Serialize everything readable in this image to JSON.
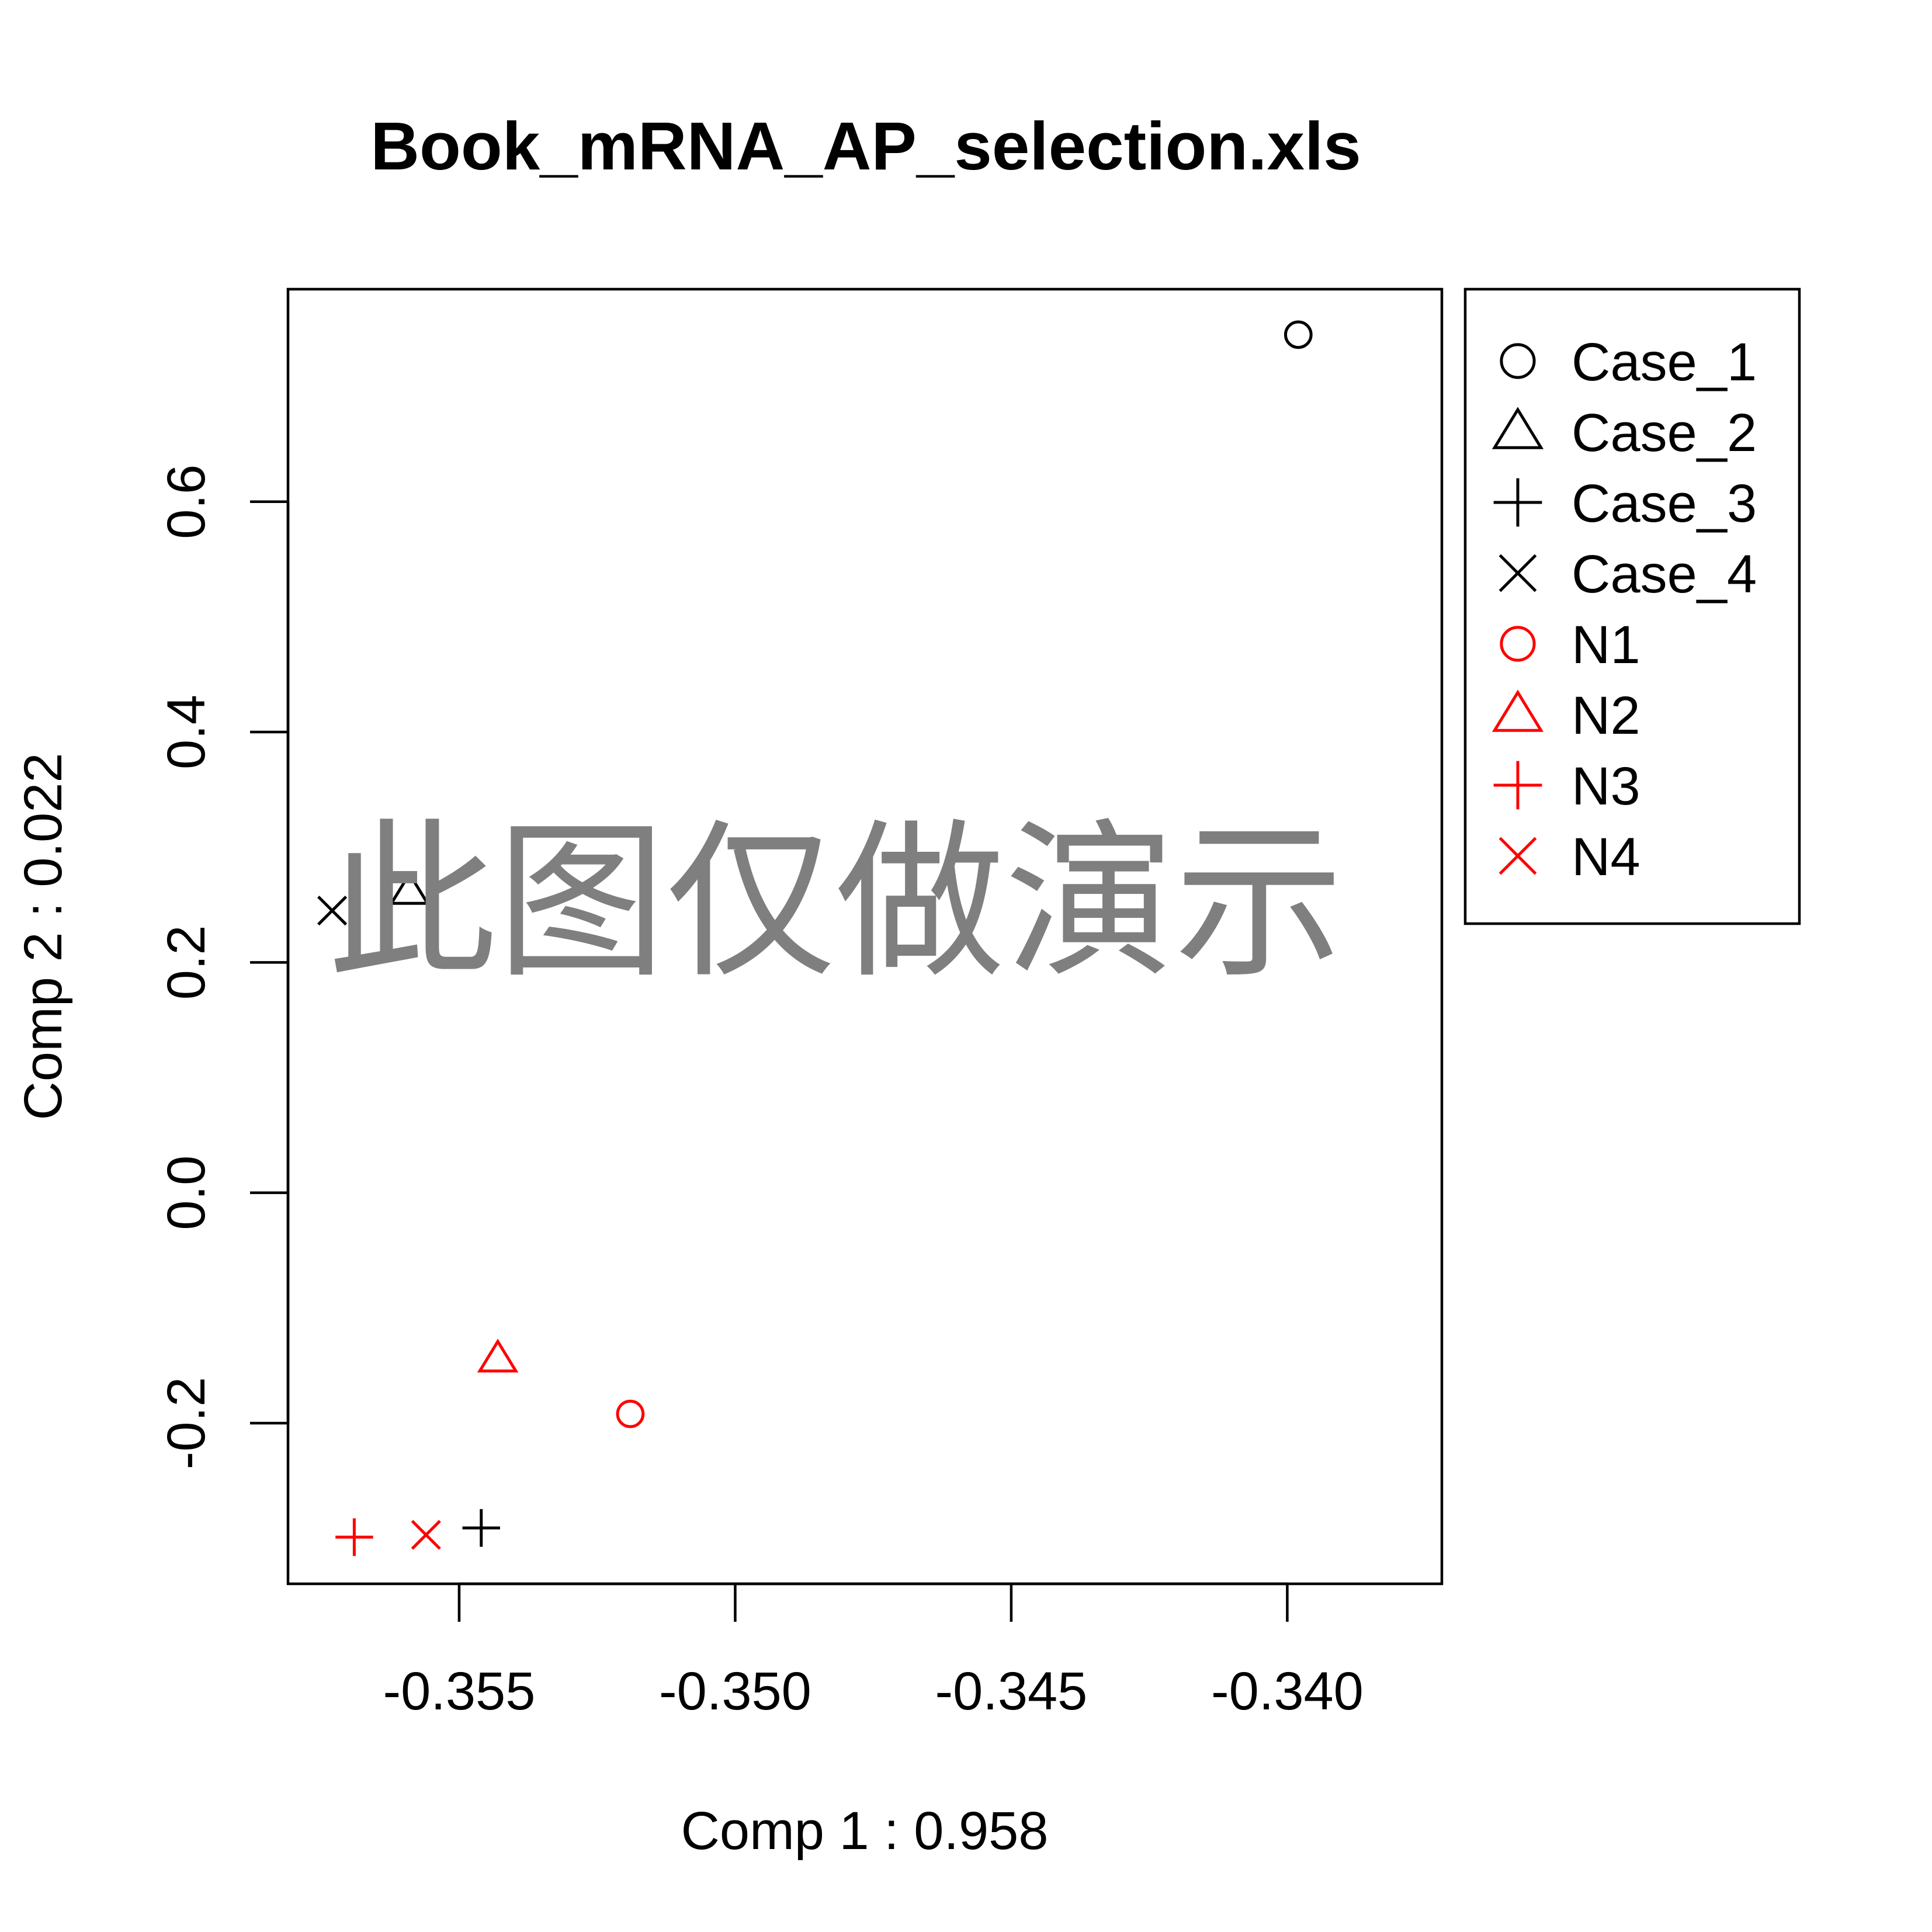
{
  "chart_data": {
    "type": "scatter",
    "title": "Book_mRNA_AP_selection.xls",
    "xlabel": "Comp 1 : 0.958",
    "ylabel": "Comp 2 : 0.022",
    "xlim": [
      -0.3581,
      -0.3372
    ],
    "ylim": [
      -0.3395,
      0.7845
    ],
    "x_ticks": [
      -0.355,
      -0.35,
      -0.345,
      -0.34
    ],
    "x_tick_labels": [
      "-0.355",
      "-0.350",
      "-0.345",
      "-0.340"
    ],
    "y_ticks": [
      -0.2,
      0.0,
      0.2,
      0.4,
      0.6
    ],
    "y_tick_labels": [
      "-0.2",
      "0.0",
      "0.2",
      "0.4",
      "0.6"
    ],
    "grid": false,
    "legend_position": "right",
    "watermark": "此图仅做演示",
    "series": [
      {
        "name": "Case_1",
        "marker": "circle",
        "color": "#000000",
        "x": -0.3398,
        "y": 0.745
      },
      {
        "name": "Case_2",
        "marker": "triangle",
        "color": "#000000",
        "x": -0.3559,
        "y": 0.262
      },
      {
        "name": "Case_3",
        "marker": "plus",
        "color": "#000000",
        "x": -0.3546,
        "y": -0.291
      },
      {
        "name": "Case_4",
        "marker": "cross",
        "color": "#000000",
        "x": -0.3573,
        "y": 0.245
      },
      {
        "name": "N1",
        "marker": "circle",
        "color": "#ff0000",
        "x": -0.3519,
        "y": -0.192
      },
      {
        "name": "N2",
        "marker": "triangle",
        "color": "#ff0000",
        "x": -0.3543,
        "y": -0.144
      },
      {
        "name": "N3",
        "marker": "plus",
        "color": "#ff0000",
        "x": -0.3569,
        "y": -0.299
      },
      {
        "name": "N4",
        "marker": "cross",
        "color": "#ff0000",
        "x": -0.3556,
        "y": -0.297
      }
    ]
  }
}
